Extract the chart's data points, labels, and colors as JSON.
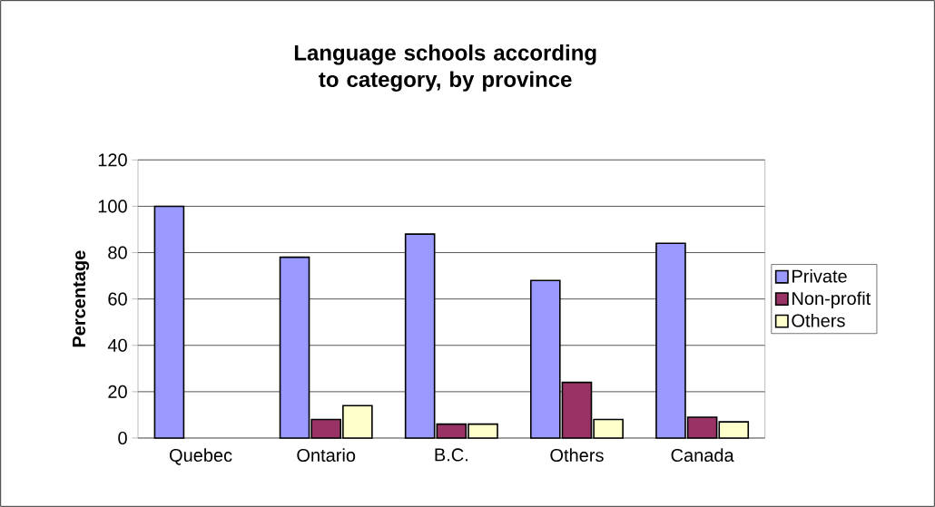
{
  "chart_data": {
    "type": "bar",
    "title": "Language schools according to category, by province",
    "ylabel": "Percentage",
    "categories": [
      "Quebec",
      "Ontario",
      "B.C.",
      "Others",
      "Canada"
    ],
    "series": [
      {
        "name": "Private",
        "color": "#9999ff",
        "values": [
          100,
          78,
          88,
          68,
          84
        ]
      },
      {
        "name": "Non-profit",
        "color": "#993366",
        "values": [
          null,
          8,
          6,
          24,
          9
        ]
      },
      {
        "name": "Others",
        "color": "#ffffcc",
        "values": [
          null,
          14,
          6,
          8,
          7
        ]
      }
    ],
    "ylim": [
      0,
      120
    ],
    "yticks": [
      0,
      20,
      40,
      60,
      80,
      100,
      120
    ],
    "grid": "y",
    "legend": "right"
  }
}
